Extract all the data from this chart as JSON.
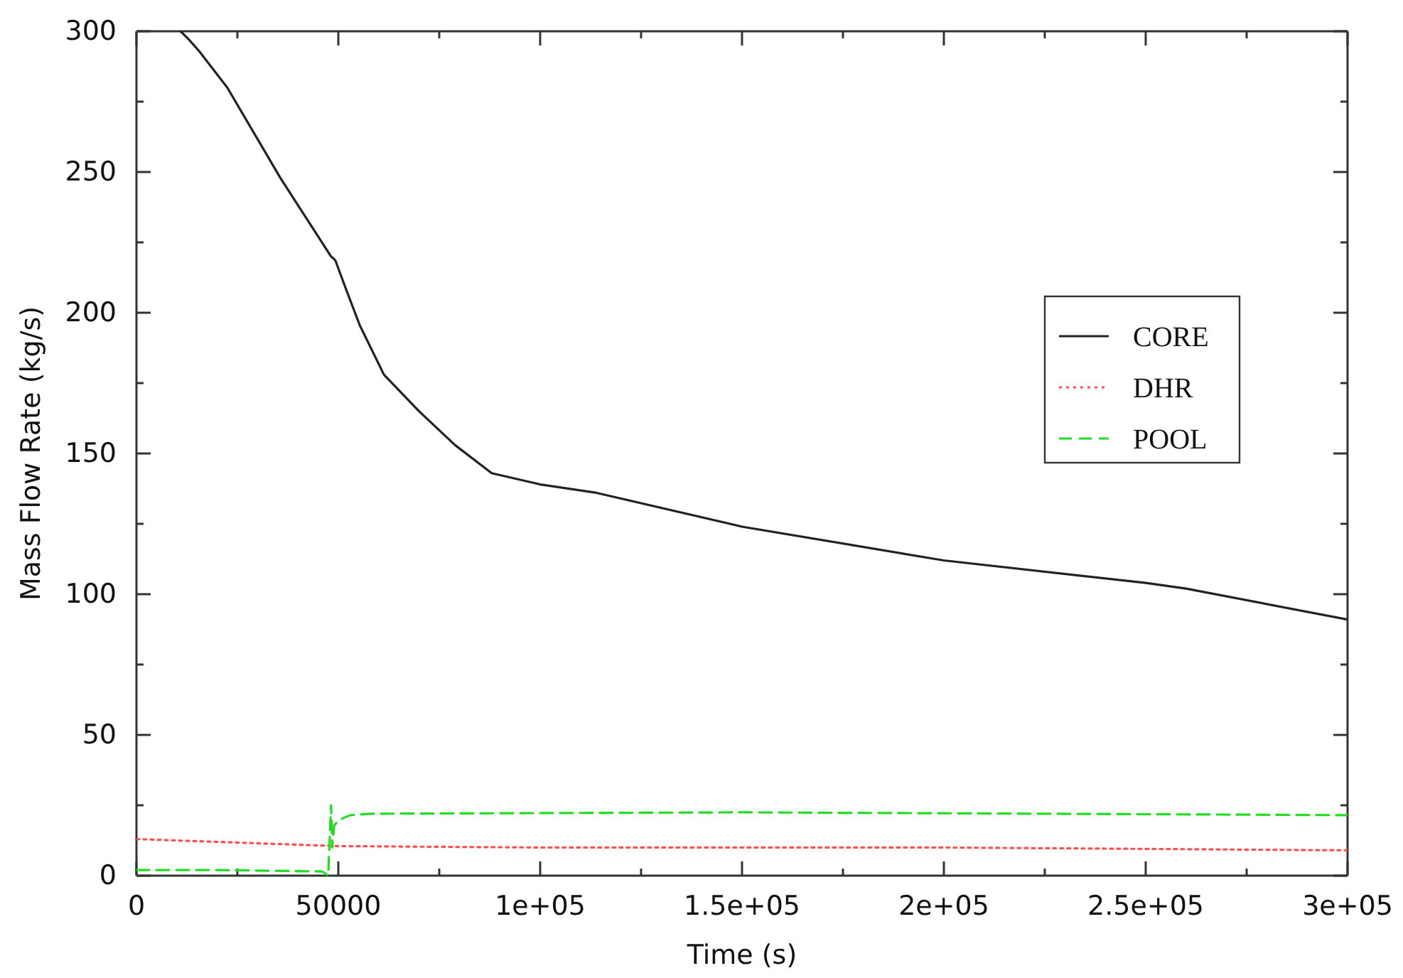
{
  "chart_data": {
    "type": "line",
    "xlabel": "Time (s)",
    "ylabel": "Mass Flow Rate (kg/s)",
    "xlim": [
      0,
      300000
    ],
    "ylim": [
      0,
      300
    ],
    "xticks": [
      0,
      {
        "value": 25000,
        "label": null
      },
      50000,
      {
        "value": 75000,
        "label": null
      },
      {
        "value": 100000,
        "label": "1e+05"
      },
      {
        "value": 125000,
        "label": null
      },
      {
        "value": 150000,
        "label": "1.5e+05"
      },
      {
        "value": 175000,
        "label": null
      },
      {
        "value": 200000,
        "label": "2e+05"
      },
      {
        "value": 225000,
        "label": null
      },
      {
        "value": 250000,
        "label": "2.5e+05"
      },
      {
        "value": 275000,
        "label": null
      },
      {
        "value": 300000,
        "label": "3e+05"
      }
    ],
    "yticks": [
      0,
      {
        "value": 25,
        "label": null
      },
      50,
      {
        "value": 75,
        "label": null
      },
      100,
      {
        "value": 125,
        "label": null
      },
      150,
      {
        "value": 175,
        "label": null
      },
      200,
      {
        "value": 225,
        "label": null
      },
      250,
      {
        "value": 275,
        "label": null
      },
      300
    ],
    "grid": false,
    "legend": "right",
    "marker": "none",
    "series": [
      {
        "name": "CORE",
        "color": "#222222",
        "line_style": "solid",
        "x": [
          10900,
          12700,
          15500,
          22500,
          35600,
          48200,
          49000,
          49300,
          52000,
          55300,
          61300,
          70000,
          78900,
          88000,
          100000,
          114000,
          150000,
          200000,
          250000,
          260000,
          300000
        ],
        "values": [
          300,
          297.5,
          293,
          280,
          248,
          220,
          219,
          218.5,
          208,
          195.6,
          178,
          165,
          153,
          143,
          139,
          136,
          124,
          112,
          104,
          102,
          91
        ]
      },
      {
        "name": "DHR",
        "color": "#ff5050",
        "line_style": "dotted",
        "x": [
          0,
          20000,
          50000,
          100000,
          200000,
          300000
        ],
        "values": [
          13,
          12,
          10.5,
          10,
          10,
          9
        ]
      },
      {
        "name": "POOL",
        "color": "#22dd22",
        "line_style": "dashed",
        "x": [
          0,
          20000,
          46000,
          47500,
          48200,
          48500,
          49000,
          50500,
          53000,
          58000,
          150000,
          300000
        ],
        "values": [
          2,
          2,
          1.5,
          0,
          25,
          10,
          18,
          20,
          21.5,
          22,
          22.5,
          21.5
        ]
      }
    ]
  }
}
